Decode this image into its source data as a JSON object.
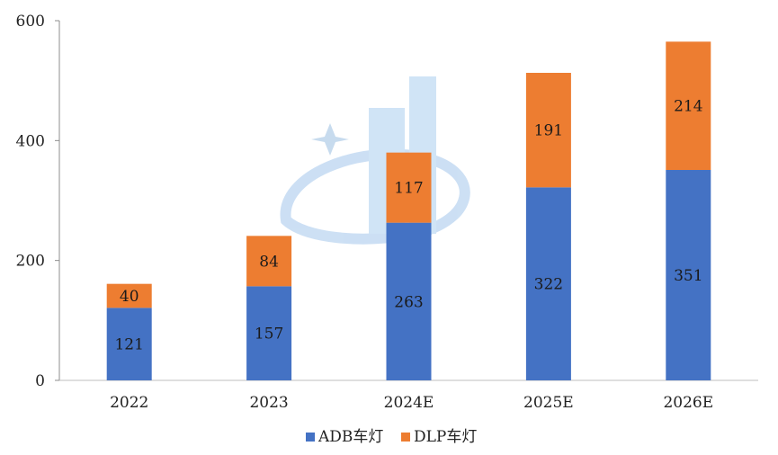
{
  "chart_data": {
    "type": "bar",
    "stacked": true,
    "title": "",
    "xlabel": "",
    "ylabel": "",
    "categories": [
      "2022",
      "2023",
      "2024E",
      "2025E",
      "2026E"
    ],
    "series": [
      {
        "name": "ADB车灯",
        "values": [
          121,
          157,
          263,
          322,
          351
        ],
        "color": "#4472C4"
      },
      {
        "name": "DLP车灯",
        "values": [
          40,
          84,
          117,
          191,
          214
        ],
        "color": "#ED7D31"
      }
    ],
    "ylim": [
      0,
      600
    ],
    "yticks": [
      0,
      200,
      400,
      600
    ],
    "grid": false,
    "legend_position": "bottom-center",
    "data_labels": true
  }
}
